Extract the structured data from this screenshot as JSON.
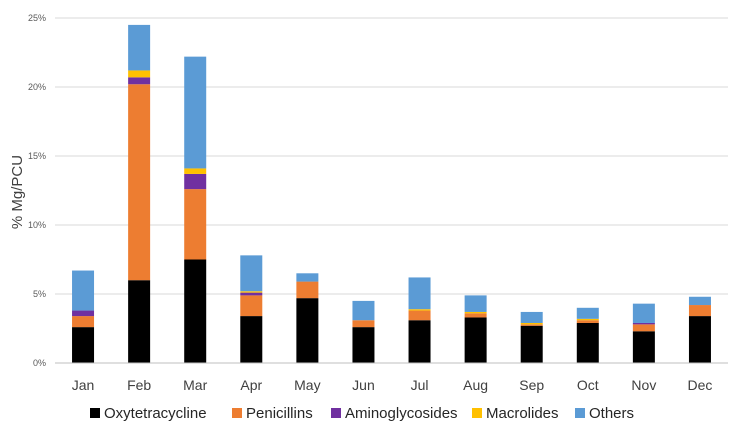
{
  "chart_data": {
    "type": "bar",
    "stacked": true,
    "categories": [
      "Jan",
      "Feb",
      "Mar",
      "Apr",
      "May",
      "Jun",
      "Jul",
      "Aug",
      "Sep",
      "Oct",
      "Nov",
      "Dec"
    ],
    "ylabel": "% Mg/PCU",
    "ylim": [
      0,
      25
    ],
    "yticks": [
      {
        "value": 0,
        "label": "0%"
      },
      {
        "value": 5,
        "label": "5%"
      },
      {
        "value": 10,
        "label": "10%"
      },
      {
        "value": 15,
        "label": "15%"
      },
      {
        "value": 20,
        "label": "20%"
      },
      {
        "value": 25,
        "label": "25%"
      }
    ],
    "grid": true,
    "legend_position": "bottom",
    "series": [
      {
        "name": "Oxytetracycline",
        "color": "#000000",
        "values": [
          2.6,
          6.0,
          7.5,
          3.4,
          4.7,
          2.6,
          3.1,
          3.3,
          2.7,
          2.9,
          2.3,
          3.4
        ]
      },
      {
        "name": "Penicillins",
        "color": "#ED7D31",
        "values": [
          0.8,
          14.2,
          5.1,
          1.5,
          1.2,
          0.5,
          0.7,
          0.3,
          0.1,
          0.2,
          0.5,
          0.8
        ]
      },
      {
        "name": "Aminoglycosides",
        "color": "#7030A0",
        "values": [
          0.4,
          0.5,
          1.1,
          0.2,
          0.0,
          0.0,
          0.0,
          0.0,
          0.0,
          0.0,
          0.1,
          0.0
        ]
      },
      {
        "name": "Macrolides",
        "color": "#FFC000",
        "values": [
          0.0,
          0.5,
          0.4,
          0.1,
          0.0,
          0.0,
          0.1,
          0.1,
          0.1,
          0.1,
          0.0,
          0.0
        ]
      },
      {
        "name": "Others",
        "color": "#5B9BD5",
        "values": [
          2.9,
          3.3,
          8.1,
          2.6,
          0.6,
          1.4,
          2.3,
          1.2,
          0.8,
          0.8,
          1.4,
          0.6
        ]
      }
    ]
  }
}
